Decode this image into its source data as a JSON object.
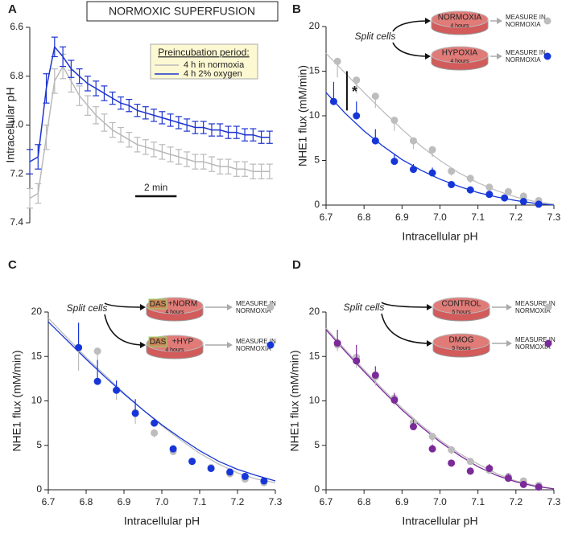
{
  "chart_data": [
    {
      "type": "line",
      "label": "A",
      "title": "NORMOXIC SUPERFUSION",
      "ylabel": "Intracellular pH",
      "legend_title": "Preincubation period:",
      "scale_bar": {
        "value": 2,
        "label": "2 min"
      },
      "x": [
        0,
        0.4,
        0.8,
        1.2,
        1.6,
        2,
        2.4,
        2.8,
        3.2,
        3.6,
        4,
        4.4,
        4.8,
        5.2,
        5.6,
        6,
        6.4,
        6.8,
        7.2,
        7.6,
        8,
        8.4,
        8.8,
        9.2,
        9.6,
        10,
        10.4,
        10.8,
        11.2,
        11.6
      ],
      "xlim": [
        0,
        11.8
      ],
      "ylim": [
        6.6,
        7.4
      ],
      "y_inverted": true,
      "yticks": [
        6.6,
        6.8,
        {
          "value": 7,
          "label": "7.0"
        },
        7.2,
        7.4
      ],
      "series": [
        {
          "name": "4 h in normoxia",
          "color": "#b9b9b9",
          "values": [
            7.3,
            7.28,
            7.05,
            6.82,
            6.76,
            6.82,
            6.88,
            6.92,
            6.96,
            6.99,
            7.02,
            7.04,
            7.06,
            7.08,
            7.09,
            7.1,
            7.11,
            7.12,
            7.13,
            7.14,
            7.15,
            7.15,
            7.16,
            7.17,
            7.17,
            7.18,
            7.18,
            7.19,
            7.19,
            7.19
          ],
          "errors": [
            0.04,
            0.04,
            0.05,
            0.05,
            0.05,
            0.045,
            0.04,
            0.04,
            0.035,
            0.035,
            0.03,
            0.03,
            0.03,
            0.03,
            0.03,
            0.03,
            0.03,
            0.03,
            0.03,
            0.03,
            0.03,
            0.03,
            0.03,
            0.03,
            0.03,
            0.03,
            0.03,
            0.03,
            0.03,
            0.03
          ]
        },
        {
          "name": "4 h 2% oxygen",
          "color": "#1d33cf",
          "values": [
            7.15,
            7.13,
            6.85,
            6.68,
            6.72,
            6.77,
            6.8,
            6.83,
            6.85,
            6.87,
            6.89,
            6.91,
            6.92,
            6.94,
            6.95,
            6.96,
            6.97,
            6.98,
            6.99,
            7.0,
            7.01,
            7.01,
            7.02,
            7.02,
            7.03,
            7.03,
            7.04,
            7.04,
            7.05,
            7.05
          ],
          "errors": [
            0.05,
            0.05,
            0.06,
            0.04,
            0.04,
            0.035,
            0.03,
            0.03,
            0.03,
            0.03,
            0.025,
            0.025,
            0.025,
            0.025,
            0.025,
            0.025,
            0.025,
            0.025,
            0.025,
            0.025,
            0.025,
            0.025,
            0.025,
            0.025,
            0.025,
            0.025,
            0.025,
            0.025,
            0.025,
            0.025
          ]
        }
      ]
    },
    {
      "type": "scatter",
      "label": "B",
      "ylabel": "NHE1 flux (mM/min)",
      "xlabel": "Intracellular pH",
      "xlim": [
        6.7,
        7.3
      ],
      "ylim": [
        0,
        20
      ],
      "xticks": [
        6.7,
        6.8,
        6.9,
        {
          "value": 7,
          "label": "7.0"
        },
        7.1,
        7.2,
        7.3
      ],
      "yticks": [
        0,
        5,
        10,
        15,
        20
      ],
      "annotation": "*",
      "inset": {
        "note": "Split cells",
        "duration": "4 hours",
        "measure": [
          "MEASURE IN",
          "NORMOXIA"
        ]
      },
      "fit_x": [
        6.7,
        6.75,
        6.8,
        6.85,
        6.9,
        6.95,
        7,
        7.05,
        7.1,
        7.15,
        7.2,
        7.25,
        7.3
      ],
      "series": [
        {
          "name": "NORMOXIA",
          "color": "#bdbdbd",
          "error_direction": "up",
          "x": [
            6.73,
            6.78,
            6.83,
            6.88,
            6.93,
            6.98,
            7.03,
            7.08,
            7.13,
            7.18,
            7.22,
            7.26
          ],
          "values": [
            16.1,
            14.0,
            12.2,
            9.5,
            7.2,
            6.2,
            3.8,
            3.0,
            2.0,
            1.5,
            1.0,
            0.5
          ],
          "errors": [
            1.8,
            1.5,
            1.3,
            1.2,
            0.9,
            0.8,
            0.5,
            0.5,
            0.4,
            0.3,
            0.3,
            0.3
          ],
          "fit": [
            17,
            14.8,
            12.6,
            10.5,
            8.5,
            6.6,
            5.0,
            3.6,
            2.5,
            1.6,
            0.9,
            0.4,
            0.1
          ]
        },
        {
          "name": "HYPOXIA",
          "color": "#1636d8",
          "error_direction": "down",
          "x": [
            6.72,
            6.78,
            6.83,
            6.88,
            6.93,
            6.98,
            7.03,
            7.08,
            7.13,
            7.17,
            7.22,
            7.26
          ],
          "values": [
            11.6,
            10.0,
            7.2,
            4.9,
            4.0,
            3.6,
            2.3,
            1.7,
            1.2,
            0.8,
            0.4,
            0.1
          ],
          "errors": [
            2.2,
            1.6,
            1.3,
            0.8,
            0.6,
            0.6,
            0.3,
            0.3,
            0.3,
            0.3,
            0.2,
            0.2
          ],
          "fit": [
            12.6,
            10.3,
            8.3,
            6.6,
            5.1,
            3.9,
            2.9,
            2.1,
            1.4,
            0.9,
            0.5,
            0.2,
            0
          ]
        }
      ]
    },
    {
      "type": "scatter",
      "label": "C",
      "ylabel": "NHE1 flux (mM/min)",
      "xlabel": "Intracellular pH",
      "xlim": [
        6.7,
        7.3
      ],
      "ylim": [
        0,
        20
      ],
      "xticks": [
        6.7,
        6.8,
        6.9,
        {
          "value": 7,
          "label": "7.0"
        },
        7.1,
        7.2,
        7.3
      ],
      "yticks": [
        0,
        5,
        10,
        15,
        20
      ],
      "inset": {
        "note": "Split cells",
        "duration": "4 hours",
        "measure": [
          "MEASURE IN",
          "NORMOXIA"
        ],
        "tag": "DAS"
      },
      "fit_x": [
        6.7,
        6.75,
        6.8,
        6.85,
        6.9,
        6.95,
        7,
        7.05,
        7.1,
        7.15,
        7.2,
        7.25,
        7.3
      ],
      "series": [
        {
          "name": "+NORM",
          "color": "#bdbdbd",
          "error_direction": "up",
          "x": [
            6.78,
            6.83,
            6.88,
            6.93,
            6.98,
            7.03,
            7.08,
            7.13,
            7.18,
            7.22,
            7.27
          ],
          "values": [
            16.0,
            15.6,
            11.2,
            8.7,
            6.4,
            4.3,
            3.2,
            2.5,
            1.8,
            1.2,
            0.8
          ],
          "errors": [
            2.6,
            1.5,
            1.1,
            1.3,
            0.5,
            0.4,
            0.3,
            0.3,
            0.3,
            0.3,
            0.2
          ],
          "fit": [
            19.3,
            17.1,
            14.9,
            12.9,
            10.9,
            9.0,
            7.2,
            5.6,
            4.1,
            2.9,
            1.9,
            1.2,
            0.8
          ]
        },
        {
          "name": "+HYP",
          "color": "#1636d8",
          "error_direction": "down",
          "x": [
            6.78,
            6.83,
            6.88,
            6.93,
            6.98,
            7.03,
            7.08,
            7.13,
            7.18,
            7.22,
            7.27
          ],
          "values": [
            16.0,
            12.2,
            11.2,
            8.6,
            7.5,
            4.6,
            3.2,
            2.4,
            2.0,
            1.5,
            1.0
          ],
          "errors": [
            2.8,
            2.4,
            1.1,
            1.6,
            0.5,
            0.4,
            0.3,
            0.3,
            0.3,
            0.3,
            0.2
          ],
          "fit": [
            18.9,
            16.8,
            14.7,
            12.7,
            10.8,
            9.0,
            7.3,
            5.8,
            4.4,
            3.2,
            2.3,
            1.6,
            1.0
          ]
        }
      ]
    },
    {
      "type": "scatter",
      "label": "D",
      "ylabel": "NHE1 flux (mM/min)",
      "xlabel": "Intracellular pH",
      "xlim": [
        6.7,
        7.3
      ],
      "ylim": [
        0,
        20
      ],
      "xticks": [
        6.7,
        6.8,
        6.9,
        {
          "value": 7,
          "label": "7.0"
        },
        7.1,
        7.2,
        7.3
      ],
      "yticks": [
        0,
        5,
        10,
        15,
        20
      ],
      "inset": {
        "note": "Split cells",
        "duration": "5 hours",
        "measure": [
          "MEASURE IN",
          "NORMOXIA"
        ]
      },
      "fit_x": [
        6.7,
        6.75,
        6.8,
        6.85,
        6.9,
        6.95,
        7,
        7.05,
        7.1,
        7.15,
        7.2,
        7.25,
        7.3
      ],
      "series": [
        {
          "name": "CONTROL",
          "color": "#bdbdbd",
          "error_direction": "up",
          "x": [
            6.73,
            6.78,
            6.83,
            6.88,
            6.93,
            6.98,
            7.03,
            7.08,
            7.13,
            7.18,
            7.22,
            7.26
          ],
          "values": [
            16.3,
            14.9,
            12.7,
            10.3,
            7.6,
            6.0,
            4.5,
            3.2,
            2.2,
            1.5,
            1.0,
            0.5
          ],
          "errors": [
            0.7,
            1.2,
            1.0,
            0.8,
            0.7,
            0.6,
            0.5,
            0.4,
            0.3,
            0.3,
            0.3,
            0.2
          ],
          "fit": [
            18.2,
            15.8,
            13.5,
            11.3,
            9.2,
            7.3,
            5.6,
            4.1,
            2.9,
            1.8,
            1.0,
            0.5,
            0.1
          ]
        },
        {
          "name": "DMOG",
          "color": "#7b2a99",
          "error_direction": "down",
          "x": [
            6.73,
            6.78,
            6.83,
            6.88,
            6.93,
            6.98,
            7.03,
            7.08,
            7.13,
            7.18,
            7.22,
            7.26
          ],
          "values": [
            16.5,
            14.5,
            12.9,
            10.1,
            7.1,
            4.6,
            3.0,
            2.1,
            2.4,
            1.3,
            0.6,
            0.3
          ],
          "errors": [
            1.5,
            1.8,
            1.0,
            0.8,
            0.8,
            0.5,
            0.3,
            0.3,
            0.5,
            0.5,
            0.3,
            0.2
          ],
          "fit": [
            18.0,
            15.6,
            13.3,
            11.1,
            9.0,
            7.1,
            5.4,
            3.9,
            2.6,
            1.6,
            0.9,
            0.4,
            0.1
          ]
        }
      ]
    }
  ]
}
